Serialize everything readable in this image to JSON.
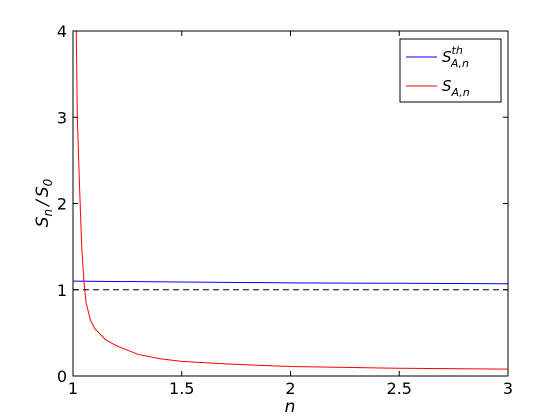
{
  "chart_data": {
    "type": "line",
    "title": "",
    "xlabel": "n",
    "ylabel": "S_n / S_0",
    "xlim": [
      1,
      3
    ],
    "ylim": [
      0,
      4
    ],
    "x_ticks": [
      "1",
      "1.5",
      "2",
      "2.5",
      "3"
    ],
    "y_ticks": [
      "0",
      "1",
      "2",
      "3",
      "4"
    ],
    "grid": false,
    "legend_position": "top-right",
    "series": [
      {
        "name": "S_{A,n}^{th}",
        "color": "#0000ff",
        "style": "solid",
        "x": [
          1.0,
          1.5,
          2.0,
          2.5,
          3.0
        ],
        "y": [
          1.1,
          1.09,
          1.08,
          1.075,
          1.07
        ]
      },
      {
        "name": "S_{A,n}",
        "color": "#ff0000",
        "style": "solid",
        "x": [
          1.015,
          1.02,
          1.03,
          1.04,
          1.05,
          1.06,
          1.08,
          1.1,
          1.15,
          1.2,
          1.3,
          1.4,
          1.5,
          1.7,
          2.0,
          2.5,
          3.0
        ],
        "y": [
          4.0,
          3.0,
          2.2,
          1.5,
          1.1,
          0.85,
          0.65,
          0.55,
          0.42,
          0.35,
          0.25,
          0.2,
          0.17,
          0.14,
          0.11,
          0.09,
          0.08
        ]
      },
      {
        "name": "",
        "color": "#000000",
        "style": "dashed",
        "x": [
          1.0,
          3.0
        ],
        "y": [
          1.0,
          1.0
        ]
      }
    ],
    "legend": [
      {
        "base": "S",
        "sub": "A,n",
        "sup": "th",
        "color": "#0000ff"
      },
      {
        "base": "S",
        "sub": "A,n",
        "sup": "",
        "color": "#ff0000"
      }
    ],
    "ylabel_parts": {
      "s1": "S",
      "sub1": "n",
      "slash": "/",
      "s2": "S",
      "sub2": "0"
    }
  }
}
